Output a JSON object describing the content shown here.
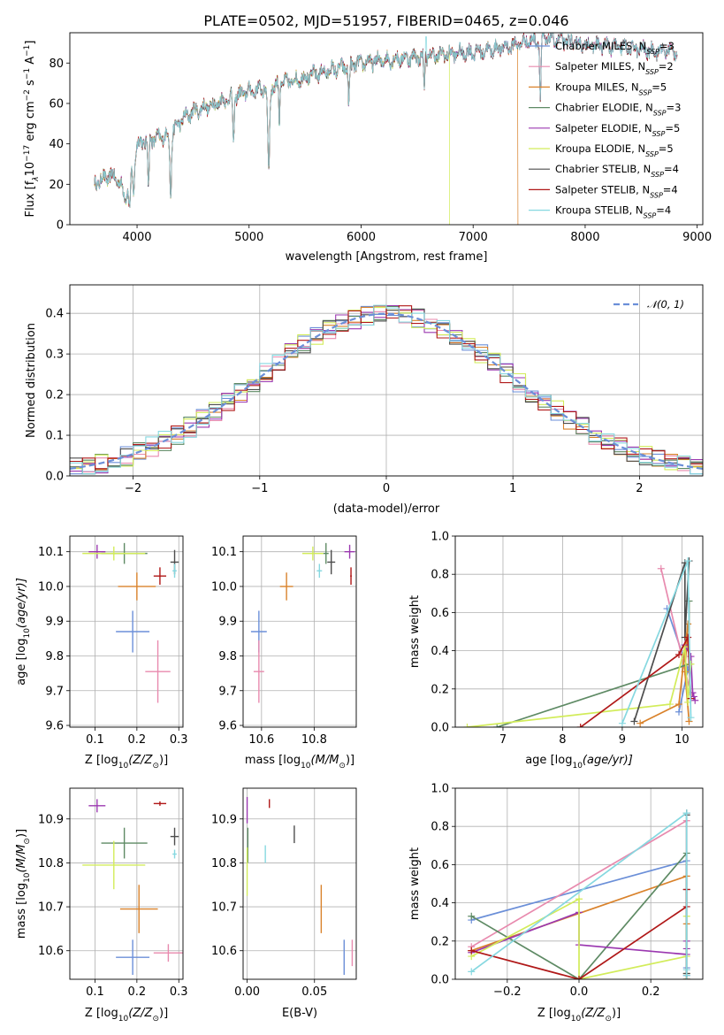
{
  "colors": {
    "Chabrier MILES": "#6b8fd8",
    "Salpeter MILES": "#e88aae",
    "Kroupa MILES": "#d9822b",
    "Chabrier ELODIE": "#5e8a64",
    "Salpeter ELODIE": "#9b38b0",
    "Kroupa ELODIE": "#d2ec5a",
    "Chabrier STELIB": "#4d4d4d",
    "Salpeter STELIB": "#b01818",
    "Kroupa STELIB": "#86d8e0"
  },
  "chart_data": [
    {
      "type": "line",
      "title": "PLATE=0502, MJD=51957, FIBERID=0465, z=0.046",
      "xlabel": "wavelength [Angstrom, rest frame]",
      "ylabel_parts": [
        "Flux [f",
        "λ",
        "10",
        "−17",
        " erg cm",
        "−2",
        " s",
        "−1",
        " A",
        "−1",
        "]"
      ],
      "xlim": [
        3400,
        9050
      ],
      "ylim": [
        0,
        95
      ],
      "xticks": [
        4000,
        5000,
        6000,
        7000,
        8000,
        9000
      ],
      "yticks": [
        0,
        20,
        40,
        60,
        80
      ],
      "legend": "top-right",
      "series": [
        {
          "name": "Chabrier MILES",
          "label": "Chabrier MILES, N",
          "sub": "SSP",
          "n": "=3"
        },
        {
          "name": "Salpeter MILES",
          "label": "Salpeter MILES, N",
          "sub": "SSP",
          "n": "=2"
        },
        {
          "name": "Kroupa MILES",
          "label": "Kroupa MILES, N",
          "sub": "SSP",
          "n": "=5"
        },
        {
          "name": "Chabrier ELODIE",
          "label": "Chabrier ELODIE, N",
          "sub": "SSP",
          "n": "=3"
        },
        {
          "name": "Salpeter ELODIE",
          "label": "Salpeter ELODIE, N",
          "sub": "SSP",
          "n": "=5"
        },
        {
          "name": "Kroupa ELODIE",
          "label": "Kroupa ELODIE, N",
          "sub": "SSP",
          "n": "=5"
        },
        {
          "name": "Chabrier STELIB",
          "label": "Chabrier STELIB, N",
          "sub": "SSP",
          "n": "=4"
        },
        {
          "name": "Salpeter STELIB",
          "label": "Salpeter STELIB, N",
          "sub": "SSP",
          "n": "=4"
        },
        {
          "name": "Kroupa STELIB",
          "label": "Kroupa STELIB, N",
          "sub": "SSP",
          "n": "=4"
        }
      ],
      "continuum": [
        [
          3620,
          20
        ],
        [
          3700,
          23
        ],
        [
          3800,
          24
        ],
        [
          3850,
          20
        ],
        [
          3900,
          14
        ],
        [
          3960,
          30
        ],
        [
          4000,
          40
        ],
        [
          4100,
          42
        ],
        [
          4200,
          43
        ],
        [
          4300,
          45
        ],
        [
          4400,
          52
        ],
        [
          4500,
          56
        ],
        [
          4700,
          60
        ],
        [
          5000,
          66
        ],
        [
          5200,
          68
        ],
        [
          5300,
          70
        ],
        [
          5500,
          73
        ],
        [
          5700,
          76
        ],
        [
          6000,
          80
        ],
        [
          6300,
          82
        ],
        [
          6500,
          83
        ],
        [
          6700,
          84
        ],
        [
          6900,
          85
        ],
        [
          7100,
          86
        ],
        [
          7300,
          88
        ],
        [
          7500,
          91
        ],
        [
          7700,
          92
        ],
        [
          8000,
          89
        ],
        [
          8300,
          88
        ],
        [
          8600,
          86
        ],
        [
          8800,
          86
        ]
      ],
      "absorption": [
        [
          3934,
          15,
          12
        ],
        [
          3969,
          15,
          12
        ],
        [
          4102,
          25,
          8
        ],
        [
          4300,
          30,
          10
        ],
        [
          4861,
          25,
          8
        ],
        [
          5175,
          40,
          12
        ],
        [
          5270,
          20,
          6
        ],
        [
          5890,
          20,
          8
        ],
        [
          6563,
          20,
          6
        ],
        [
          7600,
          30,
          8
        ]
      ],
      "fit_cutoffs": {
        "Kroupa ELODIE": 6790,
        "Kroupa MILES": 7400
      },
      "fit_start": 3620,
      "fit_end": 8820
    },
    {
      "type": "histogram",
      "xlabel": "(data-model)/error",
      "ylabel": "Normed distribution",
      "xlim": [
        -2.5,
        2.5
      ],
      "ylim": [
        0,
        0.47
      ],
      "xticks": [
        -2,
        -1,
        0,
        1,
        2
      ],
      "xtick_labels": [
        "−2",
        "−1",
        "0",
        "1",
        "2"
      ],
      "yticks": [
        0,
        0.1,
        0.2,
        0.3,
        0.4
      ],
      "ytick_labels": [
        "0.0",
        "0.1",
        "0.2",
        "0.3",
        "0.4"
      ],
      "bin_width": 0.1,
      "legend": "top-right",
      "reference": {
        "label": "𝒩(0, 1)",
        "mean": 0,
        "sigma": 1
      }
    },
    {
      "type": "scatter",
      "xlabel_parts": [
        "Z [log",
        "10",
        "(Z/Z",
        "⊙",
        ")]"
      ],
      "ylabel_parts": [
        "age  [log",
        "10",
        "(age/yr)]"
      ],
      "xlim": [
        0.04,
        0.31
      ],
      "ylim": [
        9.595,
        10.145
      ],
      "xticks": [
        0.1,
        0.2,
        0.3
      ],
      "yticks": [
        9.6,
        9.7,
        9.8,
        9.9,
        10.0,
        10.1
      ],
      "xtick_labels": [
        "0.1",
        "0.2",
        "0.3"
      ],
      "ytick_labels": [
        "9.6",
        "9.7",
        "9.8",
        "9.9",
        "10.0",
        "10.1"
      ],
      "points": [
        {
          "name": "Chabrier MILES",
          "x": 0.19,
          "y": 9.87,
          "xerr": 0.04,
          "yerr": 0.06
        },
        {
          "name": "Salpeter MILES",
          "x": 0.25,
          "y": 9.755,
          "xerr": 0.03,
          "yerr": 0.09
        },
        {
          "name": "Kroupa MILES",
          "x": 0.2,
          "y": 10.0,
          "xerr": 0.045,
          "yerr": 0.04
        },
        {
          "name": "Chabrier ELODIE",
          "x": 0.17,
          "y": 10.095,
          "xerr": 0.055,
          "yerr": 0.03
        },
        {
          "name": "Salpeter ELODIE",
          "x": 0.105,
          "y": 10.1,
          "xerr": 0.02,
          "yerr": 0.02
        },
        {
          "name": "Kroupa ELODIE",
          "x": 0.145,
          "y": 10.095,
          "xerr": 0.075,
          "yerr": 0.02
        },
        {
          "name": "Chabrier STELIB",
          "x": 0.29,
          "y": 10.07,
          "xerr": 0.01,
          "yerr": 0.035
        },
        {
          "name": "Salpeter STELIB",
          "x": 0.255,
          "y": 10.03,
          "xerr": 0.015,
          "yerr": 0.025
        },
        {
          "name": "Kroupa STELIB",
          "x": 0.29,
          "y": 10.045,
          "xerr": 0.005,
          "yerr": 0.02
        }
      ]
    },
    {
      "type": "scatter",
      "xlabel_parts": [
        "mass [log",
        "10",
        "(M/M",
        "⊙",
        ")]"
      ],
      "xlim": [
        10.53,
        10.96
      ],
      "ylim": [
        9.595,
        10.145
      ],
      "xticks": [
        10.6,
        10.8
      ],
      "yticks": [
        9.6,
        9.7,
        9.8,
        9.9,
        10.0,
        10.1
      ],
      "xtick_labels": [
        "10.6",
        "10.8"
      ],
      "ytick_labels": [
        "9.6",
        "9.7",
        "9.8",
        "9.9",
        "10.0",
        "10.1"
      ],
      "points": [
        {
          "name": "Chabrier MILES",
          "x": 10.59,
          "y": 9.87,
          "xerr": 0.03,
          "yerr": 0.06
        },
        {
          "name": "Salpeter MILES",
          "x": 10.59,
          "y": 9.755,
          "xerr": 0.02,
          "yerr": 0.09
        },
        {
          "name": "Kroupa MILES",
          "x": 10.695,
          "y": 10.0,
          "xerr": 0.025,
          "yerr": 0.04
        },
        {
          "name": "Chabrier ELODIE",
          "x": 10.845,
          "y": 10.095,
          "xerr": 0.01,
          "yerr": 0.03
        },
        {
          "name": "Salpeter ELODIE",
          "x": 10.935,
          "y": 10.1,
          "xerr": 0.02,
          "yerr": 0.02
        },
        {
          "name": "Kroupa ELODIE",
          "x": 10.795,
          "y": 10.095,
          "xerr": 0.04,
          "yerr": 0.02
        },
        {
          "name": "Chabrier STELIB",
          "x": 10.865,
          "y": 10.07,
          "xerr": 0.015,
          "yerr": 0.035
        },
        {
          "name": "Salpeter STELIB",
          "x": 10.94,
          "y": 10.03,
          "xerr": 0.003,
          "yerr": 0.025
        },
        {
          "name": "Kroupa STELIB",
          "x": 10.82,
          "y": 10.045,
          "xerr": 0.01,
          "yerr": 0.02
        }
      ]
    },
    {
      "type": "line",
      "xlabel_parts": [
        "age  [log",
        "10",
        "(age/yr)]"
      ],
      "ylabel": "mass weight",
      "xlim": [
        6.2,
        10.35
      ],
      "ylim": [
        0,
        1
      ],
      "xticks": [
        7,
        8,
        9,
        10
      ],
      "yticks": [
        0,
        0.2,
        0.4,
        0.6,
        0.8,
        1.0
      ],
      "xtick_labels": [
        "7",
        "8",
        "9",
        "10"
      ],
      "ytick_labels": [
        "0.0",
        "0.2",
        "0.4",
        "0.6",
        "0.8",
        "1.0"
      ],
      "series": [
        {
          "name": "Chabrier MILES",
          "x": [
            9.95,
            10.1,
            9.75
          ],
          "y": [
            0.08,
            0.3,
            0.62
          ]
        },
        {
          "name": "Salpeter MILES",
          "x": [
            9.65,
            10.15
          ],
          "y": [
            0.83,
            0.17
          ]
        },
        {
          "name": "Kroupa MILES",
          "x": [
            9.3,
            9.95,
            10.1,
            10.05,
            10.12
          ],
          "y": [
            0.02,
            0.12,
            0.54,
            0.29,
            0.03
          ]
        },
        {
          "name": "Chabrier ELODIE",
          "x": [
            6.9,
            10.12,
            10.12
          ],
          "y": [
            0.0,
            0.33,
            0.66
          ]
        },
        {
          "name": "Salpeter ELODIE",
          "x": [
            10.05,
            10.15,
            10.18,
            10.2,
            10.22
          ],
          "y": [
            0.43,
            0.37,
            0.18,
            0.16,
            0.14
          ]
        },
        {
          "name": "Kroupa ELODIE",
          "x": [
            6.4,
            9.8,
            10.05,
            10.1,
            10.15
          ],
          "y": [
            0.0,
            0.12,
            0.42,
            0.13,
            0.33
          ]
        },
        {
          "name": "Chabrier STELIB",
          "x": [
            9.2,
            10.05,
            10.05,
            10.12
          ],
          "y": [
            0.03,
            0.86,
            0.47,
            0.87
          ]
        },
        {
          "name": "Salpeter STELIB",
          "x": [
            8.3,
            9.95,
            10.1,
            10.15
          ],
          "y": [
            0.0,
            0.38,
            0.47,
            0.15
          ]
        },
        {
          "name": "Kroupa STELIB",
          "x": [
            9.0,
            10.1,
            10.15
          ],
          "y": [
            0.02,
            0.87,
            0.05
          ]
        }
      ]
    },
    {
      "type": "scatter",
      "xlabel_parts": [
        "Z [log",
        "10",
        "(Z/Z",
        "⊙",
        ")]"
      ],
      "ylabel_parts": [
        "mass [log",
        "10",
        "(M/M",
        "⊙",
        ")]"
      ],
      "xlim": [
        0.04,
        0.31
      ],
      "ylim": [
        10.535,
        10.97
      ],
      "xticks": [
        0.1,
        0.2,
        0.3
      ],
      "yticks": [
        10.6,
        10.7,
        10.8,
        10.9
      ],
      "xtick_labels": [
        "0.1",
        "0.2",
        "0.3"
      ],
      "ytick_labels": [
        "10.6",
        "10.7",
        "10.8",
        "10.9"
      ],
      "points": [
        {
          "name": "Chabrier MILES",
          "x": 0.19,
          "y": 10.585,
          "xerr": 0.04,
          "yerr": 0.04
        },
        {
          "name": "Salpeter MILES",
          "x": 0.275,
          "y": 10.595,
          "xerr": 0.035,
          "yerr": 0.02
        },
        {
          "name": "Kroupa MILES",
          "x": 0.205,
          "y": 10.695,
          "xerr": 0.045,
          "yerr": 0.055
        },
        {
          "name": "Chabrier ELODIE",
          "x": 0.17,
          "y": 10.845,
          "xerr": 0.055,
          "yerr": 0.035
        },
        {
          "name": "Salpeter ELODIE",
          "x": 0.105,
          "y": 10.93,
          "xerr": 0.02,
          "yerr": 0.015
        },
        {
          "name": "Kroupa ELODIE",
          "x": 0.145,
          "y": 10.795,
          "xerr": 0.075,
          "yerr": 0.055
        },
        {
          "name": "Chabrier STELIB",
          "x": 0.29,
          "y": 10.86,
          "xerr": 0.01,
          "yerr": 0.02
        },
        {
          "name": "Salpeter STELIB",
          "x": 0.255,
          "y": 10.935,
          "xerr": 0.015,
          "yerr": 0.005
        },
        {
          "name": "Kroupa STELIB",
          "x": 0.29,
          "y": 10.82,
          "xerr": 0.005,
          "yerr": 0.01
        }
      ]
    },
    {
      "type": "scatter",
      "xlabel": "E(B-V)",
      "xlim": [
        -0.003,
        0.081
      ],
      "ylim": [
        10.535,
        10.97
      ],
      "xticks": [
        0.0,
        0.05
      ],
      "yticks": [
        10.6,
        10.7,
        10.8,
        10.9
      ],
      "xtick_labels": [
        "0.00",
        "0.05"
      ],
      "ytick_labels": [
        "10.6",
        "10.7",
        "10.8",
        "10.9"
      ],
      "points": [
        {
          "name": "Chabrier MILES",
          "x": 0.072,
          "y": 10.585,
          "xerr": 0,
          "yerr": 0.04
        },
        {
          "name": "Salpeter MILES",
          "x": 0.078,
          "y": 10.595,
          "xerr": 0,
          "yerr": 0.03
        },
        {
          "name": "Kroupa MILES",
          "x": 0.055,
          "y": 10.695,
          "xerr": 0,
          "yerr": 0.055
        },
        {
          "name": "Chabrier ELODIE",
          "x": 0.0005,
          "y": 10.84,
          "xerr": 0,
          "yerr": 0.04
        },
        {
          "name": "Salpeter ELODIE",
          "x": 0.0,
          "y": 10.92,
          "xerr": 0,
          "yerr": 0.03
        },
        {
          "name": "Kroupa ELODIE",
          "x": 0.0,
          "y": 10.78,
          "xerr": 0,
          "yerr": 0.055
        },
        {
          "name": "Chabrier STELIB",
          "x": 0.035,
          "y": 10.865,
          "xerr": 0,
          "yerr": 0.02
        },
        {
          "name": "Salpeter STELIB",
          "x": 0.0165,
          "y": 10.935,
          "xerr": 0,
          "yerr": 0.01
        },
        {
          "name": "Kroupa STELIB",
          "x": 0.0135,
          "y": 10.82,
          "xerr": 0,
          "yerr": 0.02
        }
      ]
    },
    {
      "type": "line",
      "xlabel_parts": [
        "Z [log",
        "10",
        "(Z/Z",
        "⊙",
        ")]"
      ],
      "ylabel": "mass weight",
      "xlim": [
        -0.345,
        0.345
      ],
      "ylim": [
        0,
        1
      ],
      "xticks": [
        -0.2,
        0.0,
        0.2
      ],
      "yticks": [
        0,
        0.2,
        0.4,
        0.6,
        0.8,
        1.0
      ],
      "xtick_labels": [
        "−0.2",
        "0.0",
        "0.2"
      ],
      "ytick_labels": [
        "0.0",
        "0.2",
        "0.4",
        "0.6",
        "0.8",
        "1.0"
      ],
      "series": [
        {
          "name": "Chabrier MILES",
          "x": [
            -0.3,
            0.3,
            0.3,
            0.3
          ],
          "y": [
            0.31,
            0.62,
            0.06,
            0.02
          ]
        },
        {
          "name": "Salpeter MILES",
          "x": [
            -0.3,
            0.3,
            0.3
          ],
          "y": [
            0.17,
            0.83,
            0.0
          ]
        },
        {
          "name": "Kroupa MILES",
          "x": [
            -0.3,
            0.3,
            0.3,
            0.3,
            0.3
          ],
          "y": [
            0.15,
            0.54,
            0.29,
            0.03,
            0.0
          ]
        },
        {
          "name": "Chabrier ELODIE",
          "x": [
            -0.3,
            0.0,
            0.3,
            0.3
          ],
          "y": [
            0.33,
            0.0,
            0.66,
            0.0
          ]
        },
        {
          "name": "Salpeter ELODIE",
          "x": [
            -0.3,
            0.0,
            0.0,
            0.3,
            0.3,
            0.3
          ],
          "y": [
            0.14,
            0.35,
            0.18,
            0.13,
            0.2,
            0.16
          ]
        },
        {
          "name": "Kroupa ELODIE",
          "x": [
            -0.3,
            0.0,
            0.0,
            0.3,
            0.3
          ],
          "y": [
            0.12,
            0.42,
            0.0,
            0.12,
            0.33
          ]
        },
        {
          "name": "Chabrier STELIB",
          "x": [
            0.3,
            0.3,
            0.3,
            0.3
          ],
          "y": [
            0.86,
            0.47,
            0.03,
            0.87
          ]
        },
        {
          "name": "Salpeter STELIB",
          "x": [
            -0.3,
            0.0,
            0.3,
            0.3
          ],
          "y": [
            0.15,
            0.0,
            0.38,
            0.47
          ]
        },
        {
          "name": "Kroupa STELIB",
          "x": [
            -0.3,
            0.3,
            0.3,
            0.3
          ],
          "y": [
            0.04,
            0.87,
            0.05,
            0.02
          ]
        }
      ]
    }
  ]
}
